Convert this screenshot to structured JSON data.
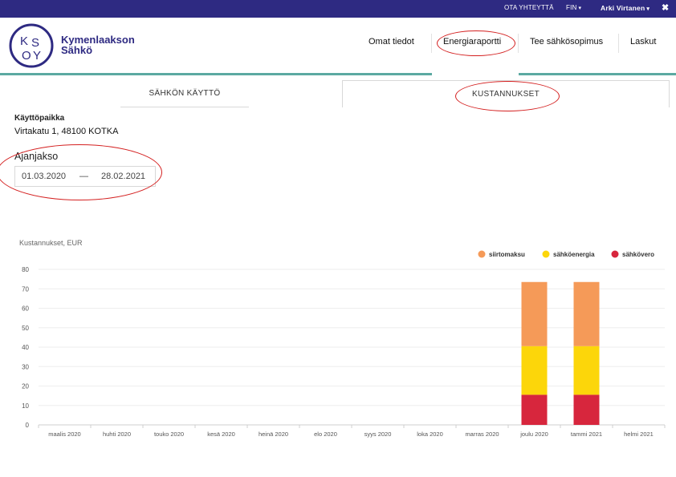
{
  "topbar": {
    "contact": "OTA YHTEYTTÄ",
    "language": "FIN",
    "user": "Arki Virtanen",
    "close_glyph": "✖",
    "chevron_glyph": "▾"
  },
  "brand": {
    "logo_letters": "KSOY",
    "name_line1": "Kymenlaakson",
    "name_line2": "Sähkö",
    "color": "#2e2a82"
  },
  "nav": {
    "items": [
      {
        "label": "Omat tiedot"
      },
      {
        "label": "Energiaraportti",
        "active": true
      },
      {
        "label": "Tee sähkösopimus"
      },
      {
        "label": "Laskut"
      }
    ]
  },
  "tabs": {
    "usage": "SÄHKÖN KÄYTTÖ",
    "costs": "KUSTANNUKSET",
    "active": "costs"
  },
  "site": {
    "label": "Käyttöpaikka",
    "address": "Virtakatu 1, 48100 KOTKA"
  },
  "period": {
    "label": "Ajanjakso",
    "start": "01.03.2020",
    "separator": "—",
    "end": "28.02.2021"
  },
  "chart_data": {
    "type": "bar",
    "stacked": true,
    "title": "Kustannukset, EUR",
    "xlabel": "",
    "ylabel": "",
    "ylim": [
      0,
      80
    ],
    "yticks": [
      0,
      10,
      20,
      30,
      40,
      50,
      60,
      70,
      80
    ],
    "grid": true,
    "legend_position": "top-right",
    "categories": [
      "maalis 2020",
      "huhti 2020",
      "touko 2020",
      "kesä 2020",
      "heinä 2020",
      "elo 2020",
      "syys 2020",
      "loka 2020",
      "marras 2020",
      "joulu 2020",
      "tammi 2021",
      "helmi 2021"
    ],
    "series": [
      {
        "name": "sähkövero",
        "color": "#d7263d",
        "values": [
          0,
          0,
          0,
          0,
          0,
          0,
          0,
          0,
          0,
          15.5,
          15.5,
          0
        ]
      },
      {
        "name": "sähköenergia",
        "color": "#fcd60a",
        "values": [
          0,
          0,
          0,
          0,
          0,
          0,
          0,
          0,
          0,
          25,
          25,
          0
        ]
      },
      {
        "name": "siirtomaksu",
        "color": "#f59a58",
        "values": [
          0,
          0,
          0,
          0,
          0,
          0,
          0,
          0,
          0,
          33,
          33,
          0
        ]
      }
    ],
    "legend_order": [
      "siirtomaksu",
      "sähköenergia",
      "sähkövero"
    ]
  }
}
